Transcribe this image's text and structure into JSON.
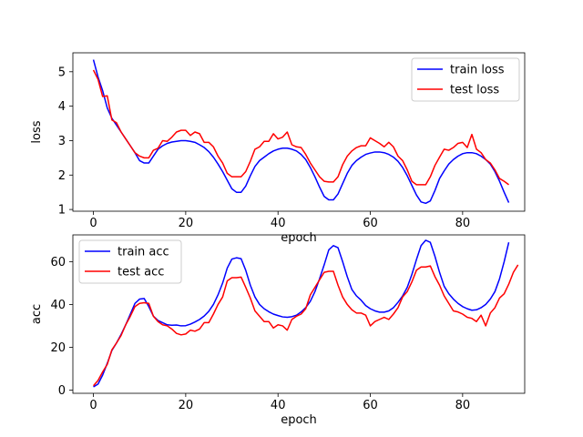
{
  "chart_data": [
    {
      "type": "line",
      "title": "",
      "xlabel": "epoch",
      "ylabel": "loss",
      "xlim": [
        -4.45,
        93.45
      ],
      "ylim": [
        0.95,
        5.55
      ],
      "xticks": [
        0,
        20,
        40,
        60,
        80
      ],
      "yticks": [
        1,
        2,
        3,
        4,
        5
      ],
      "legend_position": "upper right",
      "series": [
        {
          "name": "train loss",
          "color": "#0000ff",
          "x_start": 0,
          "x_step": 1,
          "values": [
            5.35,
            4.85,
            4.45,
            3.95,
            3.65,
            3.45,
            3.25,
            3.05,
            2.85,
            2.65,
            2.42,
            2.35,
            2.35,
            2.55,
            2.75,
            2.85,
            2.92,
            2.96,
            2.98,
            3.0,
            3.0,
            2.98,
            2.95,
            2.88,
            2.8,
            2.68,
            2.52,
            2.32,
            2.1,
            1.85,
            1.6,
            1.5,
            1.5,
            1.68,
            1.98,
            2.25,
            2.42,
            2.52,
            2.62,
            2.7,
            2.75,
            2.78,
            2.78,
            2.75,
            2.7,
            2.6,
            2.45,
            2.22,
            1.95,
            1.65,
            1.38,
            1.28,
            1.28,
            1.45,
            1.75,
            2.05,
            2.28,
            2.42,
            2.52,
            2.6,
            2.64,
            2.67,
            2.67,
            2.65,
            2.6,
            2.52,
            2.4,
            2.22,
            1.98,
            1.7,
            1.42,
            1.22,
            1.18,
            1.25,
            1.55,
            1.9,
            2.12,
            2.32,
            2.45,
            2.55,
            2.62,
            2.65,
            2.65,
            2.62,
            2.55,
            2.45,
            2.32,
            2.1,
            1.82,
            1.5,
            1.2
          ]
        },
        {
          "name": "test loss",
          "color": "#ff0000",
          "x_start": 0,
          "x_step": 1,
          "values": [
            5.05,
            4.78,
            4.28,
            4.3,
            3.6,
            3.52,
            3.25,
            3.05,
            2.85,
            2.65,
            2.55,
            2.5,
            2.5,
            2.72,
            2.78,
            3.0,
            2.98,
            3.1,
            3.25,
            3.3,
            3.3,
            3.15,
            3.25,
            3.2,
            2.95,
            2.95,
            2.82,
            2.55,
            2.35,
            2.05,
            1.95,
            1.95,
            1.95,
            2.1,
            2.4,
            2.75,
            2.82,
            2.98,
            2.98,
            3.2,
            3.05,
            3.1,
            3.25,
            2.88,
            2.82,
            2.8,
            2.6,
            2.35,
            2.15,
            1.95,
            1.82,
            1.8,
            1.8,
            1.95,
            2.3,
            2.55,
            2.7,
            2.8,
            2.85,
            2.85,
            3.08,
            3.0,
            2.92,
            2.82,
            2.95,
            2.82,
            2.55,
            2.42,
            2.15,
            1.82,
            1.72,
            1.72,
            1.72,
            1.95,
            2.28,
            2.52,
            2.75,
            2.72,
            2.8,
            2.92,
            2.95,
            2.8,
            3.18,
            2.75,
            2.65,
            2.45,
            2.35,
            2.15,
            1.9,
            1.82,
            1.72
          ]
        }
      ]
    },
    {
      "type": "line",
      "title": "",
      "xlabel": "epoch",
      "ylabel": "acc",
      "xlim": [
        -4.45,
        93.45
      ],
      "ylim": [
        -1.5,
        72.5
      ],
      "xticks": [
        0,
        20,
        40,
        60,
        80
      ],
      "yticks": [
        0,
        20,
        40,
        60
      ],
      "legend_position": "upper left",
      "series": [
        {
          "name": "train acc",
          "color": "#0000ff",
          "x_start": 0,
          "x_step": 1,
          "values": [
            1.5,
            2.8,
            7.0,
            12.5,
            18.5,
            22.0,
            26.0,
            30.5,
            35.5,
            40.5,
            42.5,
            42.8,
            39.0,
            34.5,
            32.5,
            31.5,
            30.5,
            30.3,
            30.4,
            30.0,
            30.1,
            30.8,
            31.8,
            33.0,
            34.6,
            36.8,
            40.0,
            44.5,
            50.0,
            57.0,
            61.2,
            61.8,
            61.4,
            56.0,
            49.0,
            43.5,
            40.0,
            38.0,
            36.6,
            35.5,
            34.8,
            34.2,
            34.0,
            34.3,
            35.0,
            36.5,
            38.5,
            41.5,
            46.0,
            52.0,
            58.5,
            65.5,
            67.5,
            66.5,
            60.0,
            53.0,
            47.0,
            44.0,
            42.0,
            39.5,
            38.0,
            37.0,
            36.4,
            36.4,
            37.0,
            38.5,
            41.0,
            44.0,
            48.0,
            54.0,
            61.0,
            67.5,
            70.0,
            69.0,
            62.5,
            55.0,
            48.5,
            45.0,
            42.5,
            40.5,
            39.0,
            38.0,
            37.3,
            37.5,
            38.5,
            40.0,
            42.5,
            46.0,
            52.0,
            60.0,
            69.0
          ]
        },
        {
          "name": "test acc",
          "color": "#ff0000",
          "x_start": 0,
          "x_step": 1,
          "values": [
            2.0,
            4.5,
            8.5,
            12.0,
            18.8,
            22.0,
            25.5,
            30.5,
            34.5,
            39.0,
            40.5,
            40.8,
            40.5,
            34.5,
            32.0,
            30.5,
            30.0,
            28.5,
            26.5,
            25.8,
            26.2,
            28.0,
            27.5,
            28.5,
            31.5,
            31.5,
            35.5,
            40.0,
            43.5,
            51.0,
            52.5,
            52.5,
            52.8,
            48.0,
            43.0,
            37.0,
            34.5,
            32.0,
            32.0,
            29.0,
            30.5,
            30.0,
            28.0,
            33.0,
            34.5,
            35.5,
            38.0,
            44.5,
            48.0,
            51.5,
            55.0,
            55.5,
            55.5,
            49.0,
            43.5,
            40.0,
            37.5,
            36.0,
            36.0,
            35.0,
            30.0,
            32.0,
            33.0,
            34.0,
            33.0,
            35.5,
            38.5,
            43.5,
            46.0,
            50.5,
            56.0,
            57.5,
            57.5,
            58.0,
            53.0,
            49.0,
            44.0,
            40.5,
            37.0,
            36.5,
            35.5,
            34.0,
            33.5,
            32.0,
            35.0,
            30.0,
            36.0,
            38.5,
            43.0,
            45.0,
            49.5,
            55.0,
            58.5
          ]
        }
      ]
    }
  ]
}
